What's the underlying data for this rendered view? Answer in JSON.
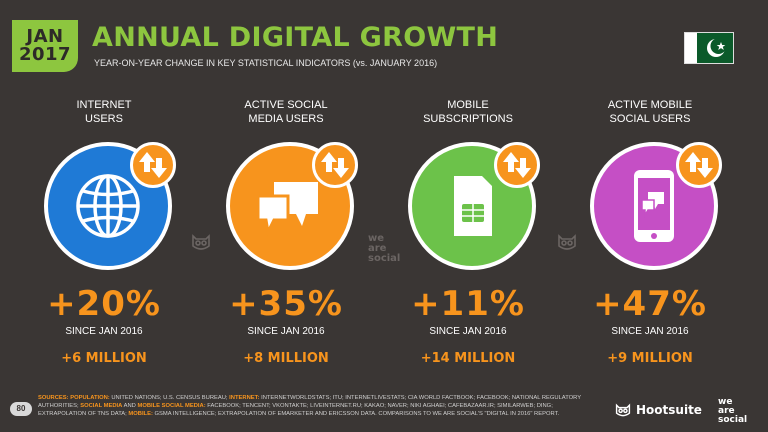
{
  "badge": {
    "month": "JAN",
    "year": "2017"
  },
  "header": {
    "title": "ANNUAL DIGITAL GROWTH",
    "subtitle": "YEAR-ON-YEAR CHANGE IN KEY STATISTICAL INDICATORS (vs. JANUARY 2016)"
  },
  "metrics": [
    {
      "label_1": "INTERNET",
      "label_2": "USERS",
      "change": "+20%",
      "since": "SINCE JAN 2016",
      "absolute": "+6 MILLION",
      "color": "#1f7ad6",
      "icon": "globe-icon"
    },
    {
      "label_1": "ACTIVE SOCIAL",
      "label_2": "MEDIA USERS",
      "change": "+35%",
      "since": "SINCE JAN 2016",
      "absolute": "+8 MILLION",
      "color": "#f7941d",
      "icon": "chat-bubbles-icon"
    },
    {
      "label_1": "MOBILE",
      "label_2": "SUBSCRIPTIONS",
      "change": "+11%",
      "since": "SINCE JAN 2016",
      "absolute": "+14 MILLION",
      "color": "#6cc24a",
      "icon": "sim-card-icon"
    },
    {
      "label_1": "ACTIVE MOBILE",
      "label_2": "SOCIAL USERS",
      "change": "+47%",
      "since": "SINCE JAN 2016",
      "absolute": "+9 MILLION",
      "color": "#c54fc5",
      "icon": "smartphone-chat-icon"
    }
  ],
  "watermark": {
    "line1": "we",
    "line2": "are",
    "line3": "social"
  },
  "footer": {
    "page_number": "80",
    "sources_label": "SOURCES:",
    "population_label": "POPULATION:",
    "population_text": "UNITED NATIONS; U.S. CENSUS BUREAU;",
    "internet_label": "INTERNET:",
    "internet_text": "INTERNETWORLDSTATS; ITU; INTERNETLIVESTATS; CIA WORLD FACTBOOK; FACEBOOK; NATIONAL REGULATORY AUTHORITIES;",
    "social_label": "SOCIAL MEDIA",
    "and_text": "AND",
    "mobile_social_label": "MOBILE SOCIAL MEDIA:",
    "social_text": "FACEBOOK; TENCENT; VKONTAKTE; LIVEINTERNET.RU; KAKAO; NAVER; NIKI AGHAEI; CAFEBAZAAR.IR; SIMILARWEB; DING; EXTRAPOLATION OF TNS DATA;",
    "mobile_label": "MOBILE:",
    "mobile_text": "GSMA INTELLIGENCE; EXTRAPOLATION OF EMARKETER AND ERICSSON DATA. COMPARISONS TO WE ARE SOCIAL'S \"DIGITAL IN 2016\" REPORT.",
    "hootsuite": "Hootsuite",
    "wesocial_1": "we",
    "wesocial_2": "are",
    "wesocial_3": "social"
  },
  "colors": {
    "accent_green": "#8dc63f",
    "accent_orange": "#f7941d",
    "background": "#3a3634"
  }
}
